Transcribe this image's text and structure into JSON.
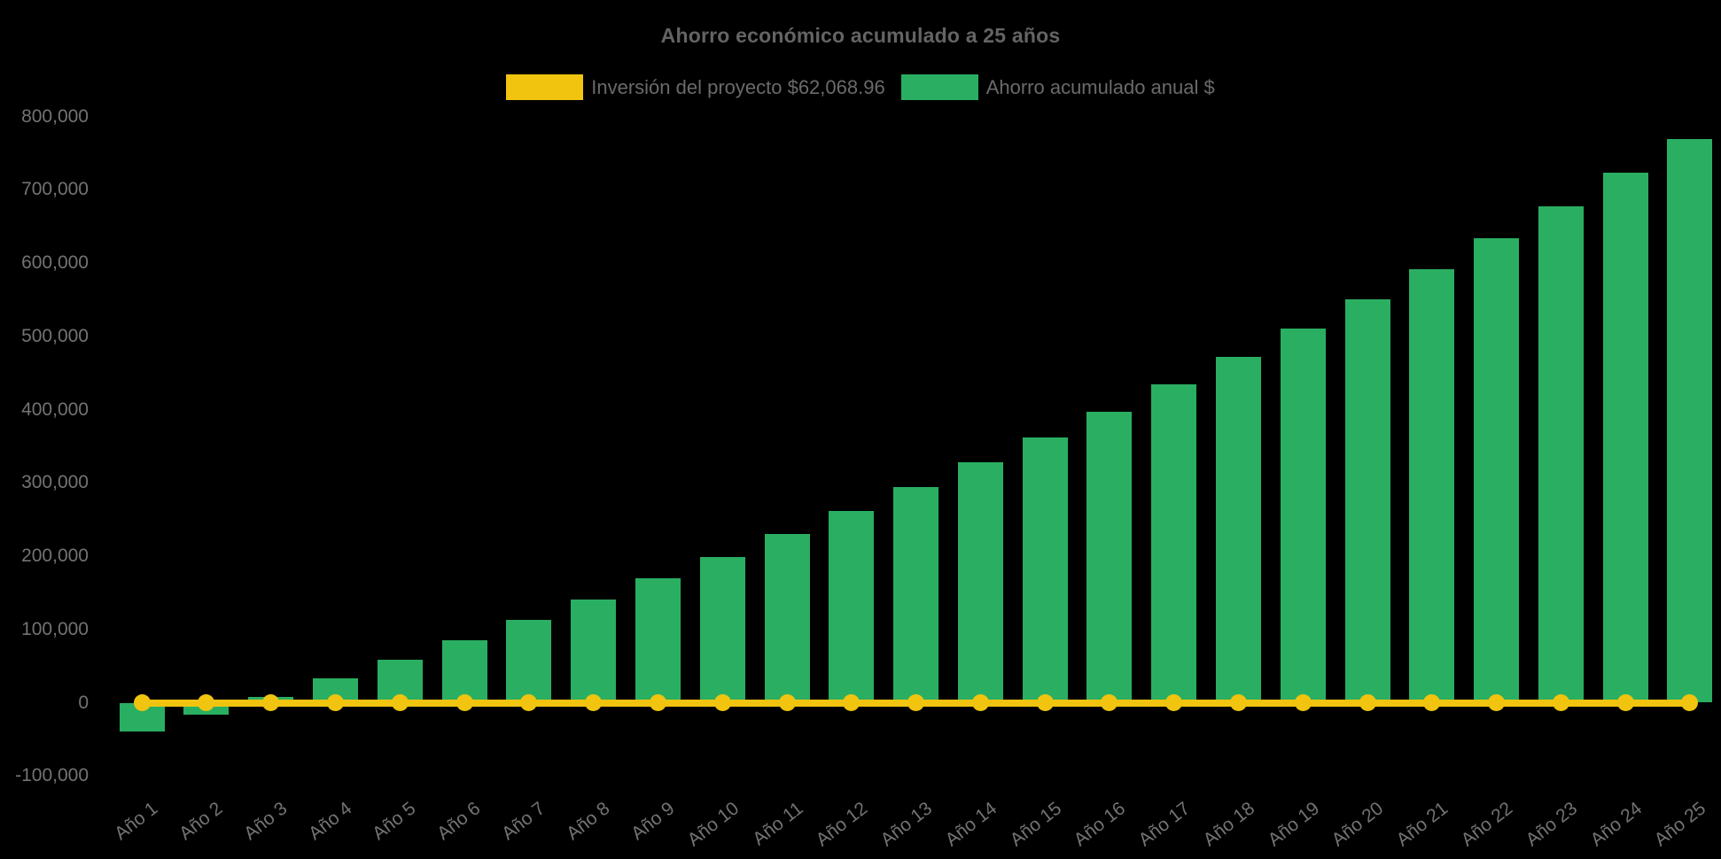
{
  "page": {
    "background": "#000000"
  },
  "chart_data": {
    "type": "bar",
    "title": "Ahorro económico acumulado a 25 años",
    "categories": [
      "Año 1",
      "Año 2",
      "Año 3",
      "Año 4",
      "Año 5",
      "Año 6",
      "Año 7",
      "Año 8",
      "Año 9",
      "Año 10",
      "Año 11",
      "Año 12",
      "Año 13",
      "Año 14",
      "Año 15",
      "Año 16",
      "Año 17",
      "Año 18",
      "Año 19",
      "Año 20",
      "Año 21",
      "Año 22",
      "Año 23",
      "Año 24",
      "Año 25"
    ],
    "series": [
      {
        "name": "Inversión del proyecto $62,068.96",
        "type": "line",
        "color": "#f1c40f",
        "values": [
          0,
          0,
          0,
          0,
          0,
          0,
          0,
          0,
          0,
          0,
          0,
          0,
          0,
          0,
          0,
          0,
          0,
          0,
          0,
          0,
          0,
          0,
          0,
          0,
          0
        ]
      },
      {
        "name": "Ahorro acumulado anual $",
        "type": "bar",
        "color": "#2aaf62",
        "values": [
          -39300,
          -15800,
          8400,
          33300,
          59000,
          85400,
          112600,
          140700,
          169600,
          199300,
          229900,
          261500,
          294000,
          327500,
          362000,
          397500,
          434100,
          471800,
          510600,
          550600,
          591800,
          634200,
          677900,
          722900,
          769200
        ]
      }
    ],
    "xlabel": "",
    "ylabel": "",
    "ylim": [
      -100000,
      800000
    ],
    "ytick_step": 100000,
    "yticks": [
      "-100,000",
      "0",
      "100,000",
      "200,000",
      "300,000",
      "400,000",
      "500,000",
      "600,000",
      "700,000",
      "800,000"
    ],
    "grid": false,
    "legend_position": "top",
    "colors": {
      "title_text": "#646464",
      "legend_text": "#6a6a6a",
      "tick_text": "#737373",
      "background": "#000000"
    }
  }
}
